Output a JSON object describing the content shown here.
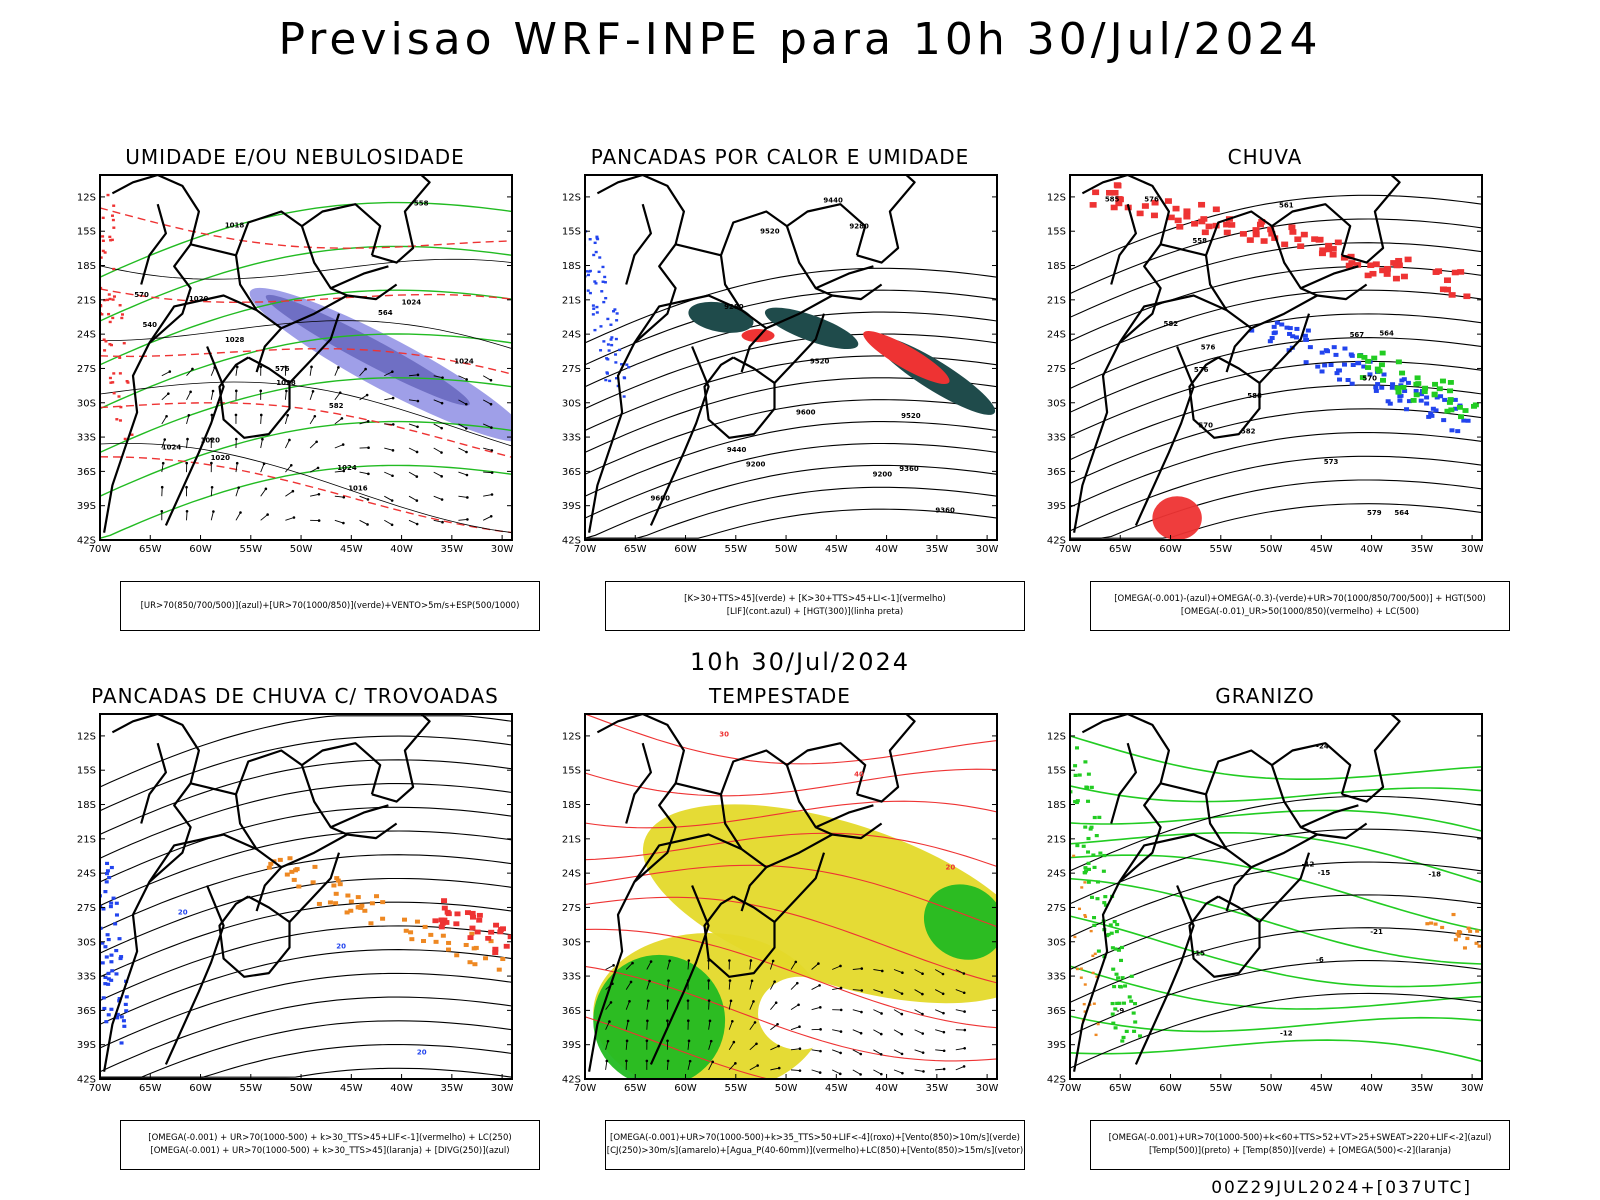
{
  "title": "Previsao WRF-INPE  para 10h 30/Jul/2024",
  "subtitle": "10h 30/Jul/2024",
  "footer": "00Z29JUL2024+[037UTC]",
  "axes": {
    "lat_labels": [
      "12S",
      "15S",
      "18S",
      "21S",
      "24S",
      "27S",
      "30S",
      "33S",
      "36S",
      "39S",
      "42S"
    ],
    "lon_labels": [
      "70W",
      "65W",
      "60W",
      "55W",
      "50W",
      "45W",
      "40W",
      "35W",
      "30W"
    ]
  },
  "panels": [
    {
      "id": "umidade",
      "title": "UMIDADE E/OU NEBULOSIDADE",
      "legend": [
        "[UR>70(850/700/500)](azul)+[UR>70(1000/850)](verde)+VENTO>5m/s+ESP(500/1000)"
      ],
      "contour_labels": [
        "1016",
        "1018",
        "1020",
        "1020",
        "1024",
        "1024",
        "1024",
        "1028",
        "1028",
        "1020",
        "1024",
        "570",
        "576",
        "582",
        "564",
        "558",
        "540"
      ],
      "colors": {
        "high": "#7f7fe0",
        "low": "#22bb22",
        "thickness": "#ee3333"
      }
    },
    {
      "id": "pancadas-calor",
      "title": "PANCADAS POR CALOR E UMIDADE",
      "legend": [
        "[K>30+TTS>45](verde) + [K>30+TTS>45+LI<-1](vermelho)",
        "[LIF](cont.azul) + [HGT(300)](linha preta)"
      ],
      "contour_labels": [
        "9600",
        "9520",
        "9520",
        "9600",
        "9520",
        "9440",
        "9360",
        "9280",
        "9200",
        "9440",
        "9360",
        "9280",
        "9200"
      ],
      "colors": {
        "k_tts": "#1f4b4b",
        "k_tts_li": "#ee3333",
        "lif": "#2244ee"
      }
    },
    {
      "id": "chuva",
      "title": "CHUVA",
      "legend": [
        "[OMEGA(-0.001)-(azul)+OMEGA(-0.3)-(verde)+UR>70(1000/850/700/500)] + HGT(500)",
        "[OMEGA(-0.01)_UR>50(1000/850)(vermelho) + LC(500)"
      ],
      "contour_labels": [
        "588",
        "582",
        "576",
        "570",
        "564",
        "558",
        "582",
        "576",
        "570",
        "567",
        "564",
        "561",
        "585",
        "579",
        "576",
        "573"
      ],
      "colors": {
        "omega": "#2244ee",
        "omega_strong": "#22cc22",
        "ur": "#ee3333"
      }
    },
    {
      "id": "trovoadas",
      "title": "PANCADAS DE CHUVA C/ TROVOADAS",
      "legend": [
        "[OMEGA(-0.001) + UR>70(1000-500) + k>30_TTS>45+LIF<-1](vermelho) + LC(250)",
        "[OMEGA(-0.001) + UR>70(1000-500) + k>30_TTS>45](laranja) + [DIVG(250)](azul)"
      ],
      "contour_labels": [
        "20",
        "20",
        "20"
      ],
      "colors": {
        "red": "#ee3333",
        "orange": "#ee8822",
        "blue": "#2244ee"
      }
    },
    {
      "id": "tempestade",
      "title": "TEMPESTADE",
      "legend": [
        "[OMEGA(-0.001)+UR>70(1000-500)+k>35_TTS>50+LIF<-4](roxo)+[Vento(850)>10m/s](verde)",
        "[CJ(250)>30m/s](amarelo)+[Agua_P(40-60mm)](vermelho)+LC(850)+[Vento(850)>15m/s](vetor)"
      ],
      "contour_labels": [
        "30",
        "40",
        "20"
      ],
      "colors": {
        "jet": "#e4d92a",
        "wind": "#22bb22",
        "streamline": "#ee3333"
      }
    },
    {
      "id": "granizo",
      "title": "GRANIZO",
      "legend": [
        "[OMEGA(-0.001)+UR>70(1000-500)+k<60+TTS>52+VT>25+SWEAT>220+LIF<-2](azul)",
        "[Temp(500)](preto) + [Temp(850)](verde) + [OMEGA(500)<-2](laranja)"
      ],
      "contour_labels": [
        "-6",
        "-9",
        "-12",
        "-15",
        "-18",
        "-21",
        "-24",
        "-15",
        "-12"
      ],
      "colors": {
        "t850": "#22cc22",
        "t500": "#000000",
        "omega": "#ee8822"
      }
    }
  ]
}
